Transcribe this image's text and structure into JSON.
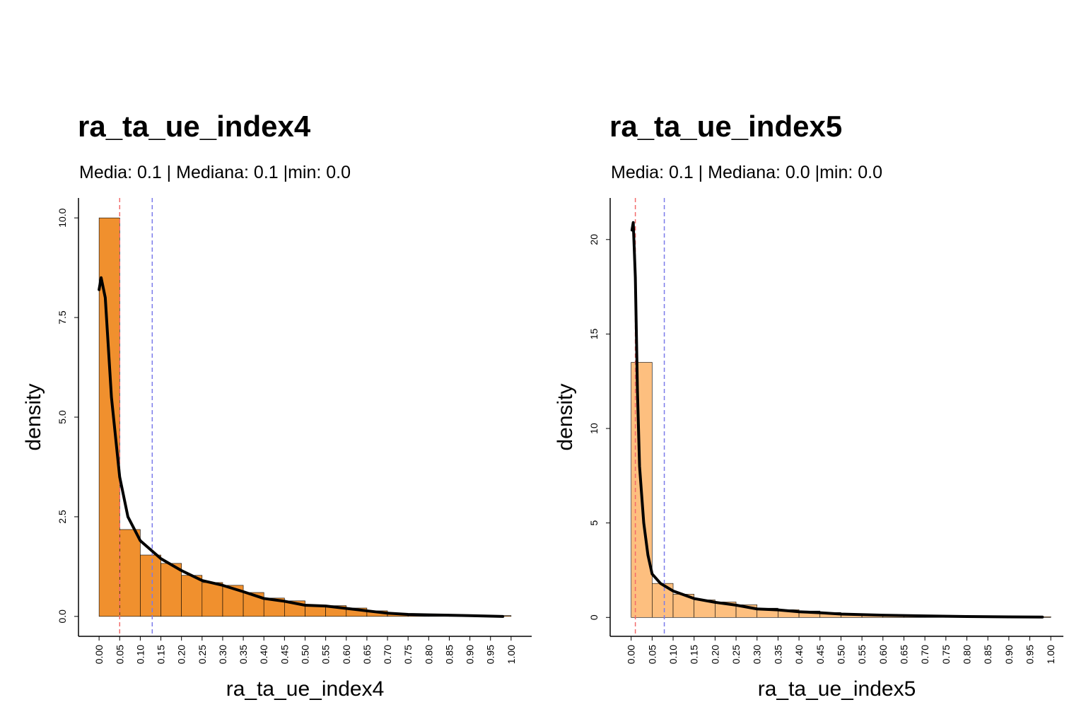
{
  "chart_data": [
    {
      "type": "histogram",
      "title": "ra_ta_ue_index4",
      "subtitle": "Media: 0.1 | Mediana: 0.1 |min: 0.0",
      "x_label": "ra_ta_ue_index4",
      "y_label": "density",
      "color": "#f0902e",
      "bins": [
        0,
        0.05,
        0.1,
        0.15,
        0.2,
        0.25,
        0.3,
        0.35,
        0.4,
        0.45,
        0.5,
        0.55,
        0.6,
        0.65,
        0.7,
        0.75,
        0.8,
        0.85,
        0.9,
        0.95,
        1
      ],
      "values": [
        10.0,
        2.18,
        1.54,
        1.33,
        1.03,
        0.85,
        0.78,
        0.6,
        0.46,
        0.39,
        0.27,
        0.27,
        0.21,
        0.14,
        0.07,
        0.05,
        0.04,
        0.04,
        0.02,
        0.02
      ],
      "density": {
        "x": [
          0,
          0.005,
          0.015,
          0.03,
          0.05,
          0.07,
          0.1,
          0.15,
          0.2,
          0.25,
          0.3,
          0.35,
          0.4,
          0.45,
          0.5,
          0.55,
          0.6,
          0.65,
          0.7,
          0.75,
          0.8,
          0.9,
          0.98
        ],
        "y": [
          8.2,
          8.5,
          8.0,
          5.5,
          3.5,
          2.5,
          1.9,
          1.45,
          1.15,
          0.9,
          0.78,
          0.62,
          0.45,
          0.38,
          0.28,
          0.26,
          0.2,
          0.14,
          0.08,
          0.05,
          0.04,
          0.02,
          0.0
        ],
        "color": "#000000"
      },
      "vlines": [
        {
          "value": 0.05,
          "color": "#f26b6b"
        },
        {
          "value": 0.129,
          "color": "#7b7bea"
        }
      ],
      "xlim": [
        -0.05,
        1.05
      ],
      "ylim": [
        -0.5,
        10.5
      ],
      "xticks": [
        {
          "value": 0,
          "label": "0.00"
        },
        {
          "value": 0.05,
          "label": "0.05"
        },
        {
          "value": 0.1,
          "label": "0.10"
        },
        {
          "value": 0.15,
          "label": "0.15"
        },
        {
          "value": 0.2,
          "label": "0.20"
        },
        {
          "value": 0.25,
          "label": "0.25"
        },
        {
          "value": 0.3,
          "label": "0.30"
        },
        {
          "value": 0.35,
          "label": "0.35"
        },
        {
          "value": 0.4,
          "label": "0.40"
        },
        {
          "value": 0.45,
          "label": "0.45"
        },
        {
          "value": 0.5,
          "label": "0.50"
        },
        {
          "value": 0.55,
          "label": "0.55"
        },
        {
          "value": 0.6,
          "label": "0.60"
        },
        {
          "value": 0.65,
          "label": "0.65"
        },
        {
          "value": 0.7,
          "label": "0.70"
        },
        {
          "value": 0.75,
          "label": "0.75"
        },
        {
          "value": 0.8,
          "label": "0.80"
        },
        {
          "value": 0.85,
          "label": "0.85"
        },
        {
          "value": 0.9,
          "label": "0.90"
        },
        {
          "value": 0.95,
          "label": "0.95"
        },
        {
          "value": 1,
          "label": "1.00"
        }
      ],
      "yticks": [
        {
          "value": 0,
          "label": "0.0"
        },
        2.5,
        {
          "value": 5,
          "label": "5.0"
        },
        7.5,
        {
          "value": 10,
          "label": "10.0"
        }
      ]
    },
    {
      "type": "histogram",
      "title": "ra_ta_ue_index5",
      "subtitle": "Media: 0.1 | Mediana: 0.0 |min: 0.0",
      "x_label": "ra_ta_ue_index5",
      "y_label": "density",
      "color": "#fdbf7f",
      "bins": [
        0,
        0.05,
        0.1,
        0.15,
        0.2,
        0.25,
        0.3,
        0.35,
        0.4,
        0.45,
        0.5,
        0.55,
        0.6,
        0.65,
        0.7,
        0.75,
        0.8,
        0.85,
        0.9,
        0.95,
        1
      ],
      "values": [
        13.5,
        1.8,
        1.23,
        0.93,
        0.82,
        0.67,
        0.49,
        0.41,
        0.34,
        0.26,
        0.19,
        0.15,
        0.15,
        0.11,
        0.07,
        0.07,
        0.04,
        0.04,
        0.04,
        0.04
      ],
      "density": {
        "x": [
          0.002,
          0.005,
          0.01,
          0.015,
          0.02,
          0.03,
          0.04,
          0.05,
          0.07,
          0.1,
          0.15,
          0.2,
          0.25,
          0.3,
          0.35,
          0.4,
          0.45,
          0.5,
          0.6,
          0.7,
          0.8,
          0.9,
          0.98
        ],
        "y": [
          20.5,
          20.9,
          18,
          12,
          8,
          5,
          3.3,
          2.3,
          1.8,
          1.4,
          1.0,
          0.8,
          0.65,
          0.45,
          0.4,
          0.3,
          0.25,
          0.18,
          0.12,
          0.08,
          0.05,
          0.03,
          0.02
        ],
        "color": "#000000"
      },
      "vlines": [
        {
          "value": 0.01,
          "color": "#f26b6b"
        },
        {
          "value": 0.079,
          "color": "#7b7bea"
        }
      ],
      "xlim": [
        -0.05,
        1.03
      ],
      "ylim": [
        -1.0,
        22.2
      ],
      "xticks": [
        {
          "value": 0,
          "label": "0.00"
        },
        {
          "value": 0.05,
          "label": "0.05"
        },
        {
          "value": 0.1,
          "label": "0.10"
        },
        {
          "value": 0.15,
          "label": "0.15"
        },
        {
          "value": 0.2,
          "label": "0.20"
        },
        {
          "value": 0.25,
          "label": "0.25"
        },
        {
          "value": 0.3,
          "label": "0.30"
        },
        {
          "value": 0.35,
          "label": "0.35"
        },
        {
          "value": 0.4,
          "label": "0.40"
        },
        {
          "value": 0.45,
          "label": "0.45"
        },
        {
          "value": 0.5,
          "label": "0.50"
        },
        {
          "value": 0.55,
          "label": "0.55"
        },
        {
          "value": 0.6,
          "label": "0.60"
        },
        {
          "value": 0.65,
          "label": "0.65"
        },
        {
          "value": 0.7,
          "label": "0.70"
        },
        {
          "value": 0.75,
          "label": "0.75"
        },
        {
          "value": 0.8,
          "label": "0.80"
        },
        {
          "value": 0.85,
          "label": "0.85"
        },
        {
          "value": 0.9,
          "label": "0.90"
        },
        {
          "value": 0.95,
          "label": "0.95"
        },
        {
          "value": 1,
          "label": "1.00"
        }
      ],
      "yticks": [
        0,
        5,
        10,
        15,
        20
      ]
    }
  ]
}
